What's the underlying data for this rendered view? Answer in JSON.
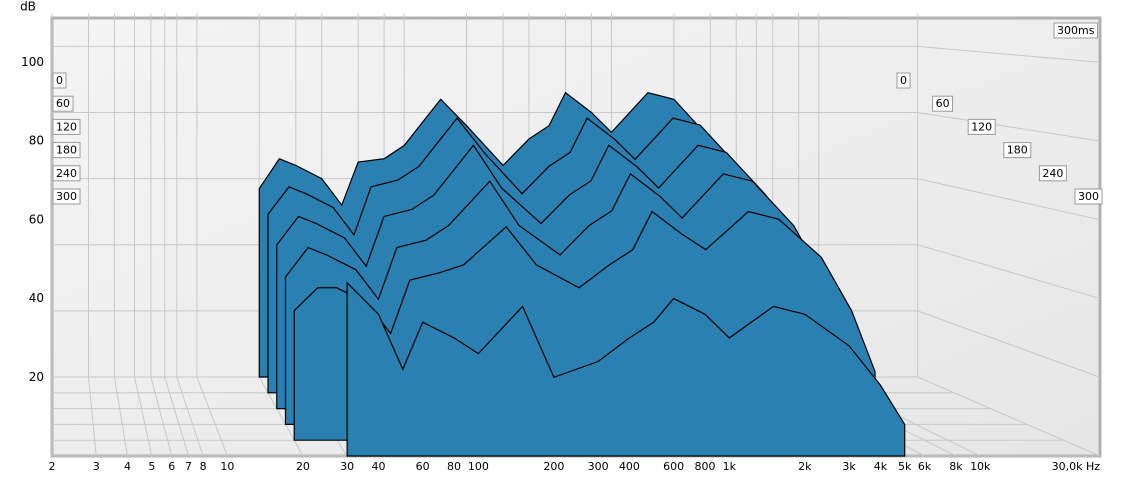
{
  "chart_data": {
    "type": "waterfall",
    "ylabel": "dB",
    "time_unit_label": "300ms",
    "x": [
      20,
      25,
      30,
      40,
      50,
      60,
      80,
      100,
      150,
      200,
      300,
      400,
      500,
      600,
      800,
      1000,
      1500,
      2000,
      3000,
      4000,
      5000,
      6000,
      7000
    ],
    "xlim": [
      2,
      30000
    ],
    "xscale": "log",
    "xticks": [
      2,
      3,
      4,
      5,
      6,
      7,
      8,
      10,
      20,
      30,
      40,
      60,
      80,
      100,
      200,
      300,
      400,
      600,
      800,
      {
        "value": 1000,
        "label": "1k"
      },
      {
        "value": 2000,
        "label": "2k"
      },
      {
        "value": 3000,
        "label": "3k"
      },
      {
        "value": 4000,
        "label": "4k"
      },
      {
        "value": 5000,
        "label": "5k"
      },
      {
        "value": 6000,
        "label": "6k"
      },
      {
        "value": 8000,
        "label": "8k"
      },
      {
        "value": 10000,
        "label": "10k"
      },
      {
        "value": 30000,
        "label": "30,0k Hz"
      }
    ],
    "ylim": [
      0,
      110
    ],
    "yticks": [
      20,
      40,
      60,
      80,
      100
    ],
    "grid": true,
    "fill_color": "#2b80b2",
    "edge_color": "#000000",
    "series": [
      {
        "name": "0",
        "values": [
          57,
          66,
          64,
          60,
          52,
          65,
          66,
          70,
          84,
          76,
          64,
          72,
          76,
          86,
          80,
          74,
          86,
          84,
          72,
          58,
          42,
          24,
          6
        ]
      },
      {
        "name": "60",
        "values": [
          52,
          60,
          58,
          54,
          46,
          60,
          62,
          66,
          80,
          70,
          58,
          66,
          70,
          80,
          74,
          68,
          80,
          78,
          66,
          52,
          36,
          18,
          null
        ]
      },
      {
        "name": "120",
        "values": [
          46,
          54,
          52,
          48,
          40,
          54,
          56,
          60,
          74,
          62,
          52,
          60,
          64,
          74,
          68,
          62,
          74,
          72,
          60,
          46,
          30,
          12,
          null
        ]
      },
      {
        "name": "180",
        "values": [
          40,
          48,
          46,
          42,
          34,
          48,
          50,
          54,
          66,
          54,
          46,
          54,
          58,
          68,
          62,
          56,
          68,
          66,
          54,
          40,
          24,
          null,
          null
        ]
      },
      {
        "name": "240",
        "values": [
          34,
          40,
          40,
          36,
          28,
          42,
          44,
          46,
          56,
          46,
          40,
          46,
          50,
          60,
          54,
          50,
          60,
          58,
          48,
          34,
          18,
          null,
          null
        ]
      },
      {
        "name": "300",
        "values": [
          null,
          null,
          44,
          36,
          22,
          34,
          30,
          26,
          38,
          20,
          24,
          30,
          34,
          40,
          36,
          30,
          38,
          36,
          28,
          18,
          8,
          null,
          null
        ]
      }
    ]
  }
}
